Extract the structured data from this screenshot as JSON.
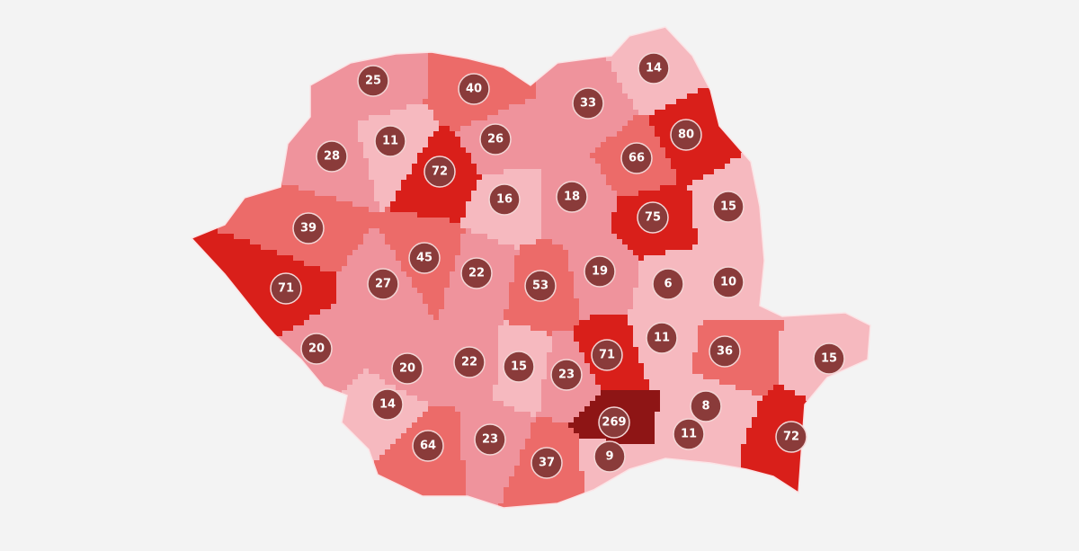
{
  "map": {
    "colors": {
      "light": "#f6b9bf",
      "mid": "#ef939c",
      "salmon": "#ec6b69",
      "red": "#d91f1a",
      "dark": "#8e1515",
      "marker": "#8a3b3a",
      "border": "#fbe4e6",
      "background": "#f3f3f3"
    },
    "counties": [
      {
        "value": "25",
        "shade": "mid"
      },
      {
        "value": "40",
        "shade": "salmon"
      },
      {
        "value": "33",
        "shade": "mid"
      },
      {
        "value": "14",
        "shade": "light"
      },
      {
        "value": "11",
        "shade": "light"
      },
      {
        "value": "26",
        "shade": "mid"
      },
      {
        "value": "80",
        "shade": "red"
      },
      {
        "value": "28",
        "shade": "mid"
      },
      {
        "value": "72",
        "shade": "red"
      },
      {
        "value": "66",
        "shade": "salmon"
      },
      {
        "value": "16",
        "shade": "light"
      },
      {
        "value": "18",
        "shade": "mid"
      },
      {
        "value": "75",
        "shade": "red"
      },
      {
        "value": "15",
        "shade": "light"
      },
      {
        "value": "39",
        "shade": "salmon"
      },
      {
        "value": "45",
        "shade": "salmon"
      },
      {
        "value": "22",
        "shade": "mid"
      },
      {
        "value": "53",
        "shade": "salmon"
      },
      {
        "value": "19",
        "shade": "mid"
      },
      {
        "value": "6",
        "shade": "light"
      },
      {
        "value": "10",
        "shade": "light"
      },
      {
        "value": "71",
        "shade": "red"
      },
      {
        "value": "27",
        "shade": "mid"
      },
      {
        "value": "20",
        "shade": "mid"
      },
      {
        "value": "11",
        "shade": "light"
      },
      {
        "value": "36",
        "shade": "salmon"
      },
      {
        "value": "15",
        "shade": "light"
      },
      {
        "value": "20",
        "shade": "mid"
      },
      {
        "value": "22",
        "shade": "mid"
      },
      {
        "value": "15",
        "shade": "light"
      },
      {
        "value": "23",
        "shade": "mid"
      },
      {
        "value": "71",
        "shade": "red"
      },
      {
        "value": "14",
        "shade": "light"
      },
      {
        "value": "269",
        "shade": "dark"
      },
      {
        "value": "8",
        "shade": "light"
      },
      {
        "value": "64",
        "shade": "salmon"
      },
      {
        "value": "23",
        "shade": "mid"
      },
      {
        "value": "37",
        "shade": "salmon"
      },
      {
        "value": "9",
        "shade": "light"
      },
      {
        "value": "11",
        "shade": "light"
      },
      {
        "value": "72",
        "shade": "red"
      }
    ]
  }
}
